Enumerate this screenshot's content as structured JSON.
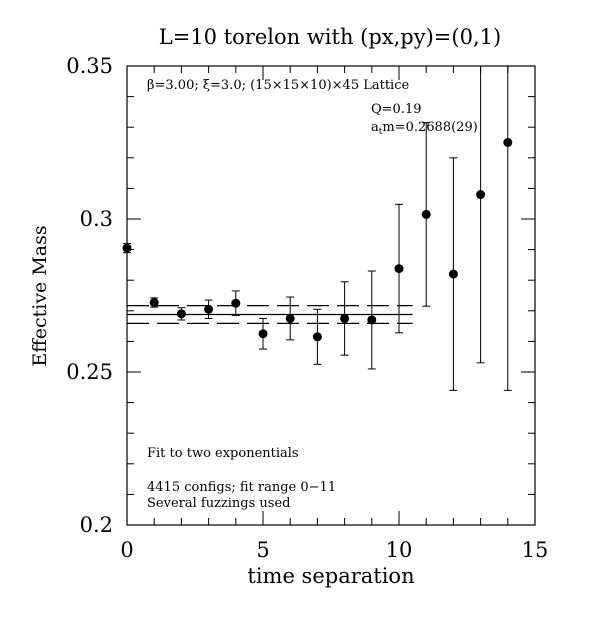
{
  "chart_data": {
    "type": "scatter",
    "title": "L=10 torelon with (px,py)=(0,1)",
    "xlabel": "time separation",
    "ylabel": "Effective Mass",
    "xlim": [
      0,
      15
    ],
    "ylim": [
      0.2,
      0.35
    ],
    "x_ticks": [
      0,
      5,
      10,
      15
    ],
    "x_tick_labels": [
      "0",
      "5",
      "10",
      "15"
    ],
    "y_ticks": [
      0.2,
      0.25,
      0.3,
      0.35
    ],
    "y_tick_labels": [
      "0.2",
      "0.25",
      "0.3",
      "0.35"
    ],
    "grid": false,
    "points": [
      {
        "x": 0,
        "y": 0.2905,
        "err": 0.0015
      },
      {
        "x": 1,
        "y": 0.2727,
        "err": 0.0015
      },
      {
        "x": 2,
        "y": 0.269,
        "err": 0.002
      },
      {
        "x": 3,
        "y": 0.2705,
        "err": 0.003
      },
      {
        "x": 4,
        "y": 0.2725,
        "err": 0.004
      },
      {
        "x": 5,
        "y": 0.2625,
        "err": 0.005
      },
      {
        "x": 6,
        "y": 0.2675,
        "err": 0.007
      },
      {
        "x": 7,
        "y": 0.2615,
        "err": 0.009
      },
      {
        "x": 8,
        "y": 0.2675,
        "err": 0.012
      },
      {
        "x": 9,
        "y": 0.267,
        "err": 0.016
      },
      {
        "x": 10,
        "y": 0.2838,
        "err": 0.021
      },
      {
        "x": 11,
        "y": 0.3015,
        "err": 0.03
      },
      {
        "x": 12,
        "y": 0.282,
        "err": 0.038
      },
      {
        "x": 13,
        "y": 0.308,
        "err": 0.055
      },
      {
        "x": 14,
        "y": 0.325,
        "err": 0.081
      }
    ],
    "fit": {
      "central": 0.2688,
      "error": 0.0029,
      "x_range": [
        0,
        11
      ]
    },
    "annotations": {
      "lattice": "β=3.00; ξ=3.0; (15×15×10)×45 Lattice",
      "q_value": "Q=0.19",
      "mass_prefix": "a",
      "mass_sub": "t",
      "mass_value": "m=0.2688(29)",
      "fit_type": "Fit to two exponentials",
      "configs": "4415 configs; fit range 0−11",
      "fuzzings": "Several fuzzings used"
    }
  }
}
